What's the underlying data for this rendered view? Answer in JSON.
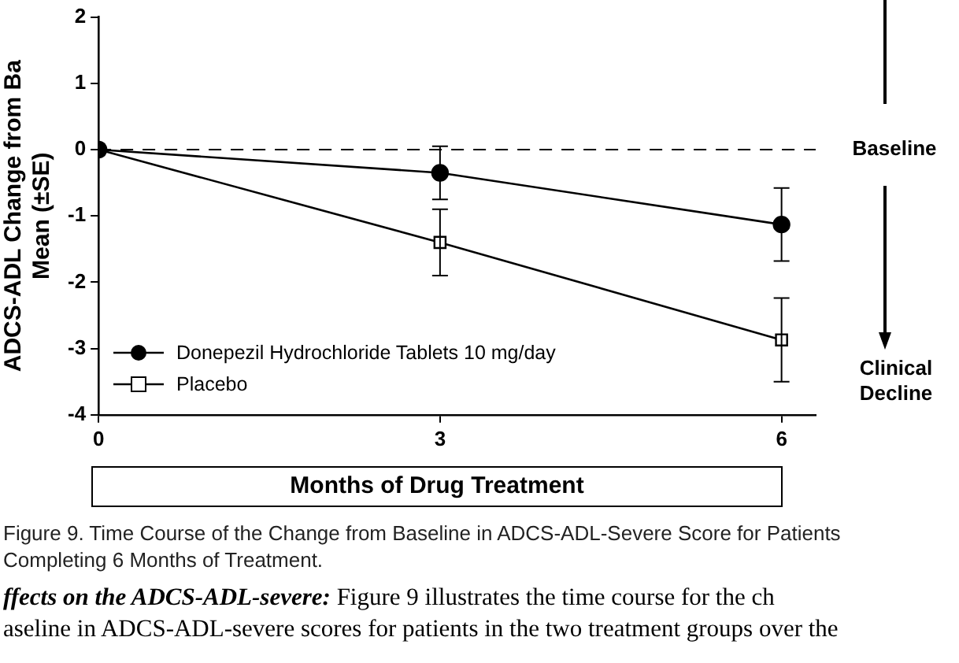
{
  "chart_data": {
    "type": "line",
    "ylabel": "ADCS-ADL Change from Ba\nMean (±SE)",
    "xlabel": "Months of Drug Treatment",
    "x": [
      0,
      3,
      6
    ],
    "xlim": [
      0,
      6.3
    ],
    "xticks": [
      0,
      3,
      6
    ],
    "ylim": [
      -4,
      2
    ],
    "yticks": [
      -4,
      -3,
      -2,
      -1,
      0,
      1,
      2
    ],
    "series": [
      {
        "name": "Donepezil Hydrochloride Tablets 10 mg/day",
        "color": "#000000",
        "marker": "circle",
        "values": [
          0,
          -0.35,
          -1.13
        ],
        "errors": [
          null,
          0.4,
          0.55
        ]
      },
      {
        "name": "Placebo",
        "color": "#000000",
        "marker": "square",
        "values": [
          0,
          -1.4,
          -2.87
        ],
        "errors": [
          null,
          0.5,
          0.63
        ]
      }
    ],
    "ref_lines": [
      {
        "axis": "y",
        "value": 0,
        "label": "Baseline",
        "line_style": "dashed",
        "color": "#000000"
      }
    ],
    "annotations": [
      "Clinical Decline",
      "Figure 9. Time Course of the Change from Baseline in ADCS-ADL-Severe Score for Patients Completing 6 Months of Treatment.",
      "ffects on the ADCS-ADL-severe:",
      "Figure 9 illustrates the time course for the ch",
      "aseline in ADCS-ADL-severe scores for patients in the two treatment groups over the"
    ],
    "grid": false,
    "legend": "bottom left"
  }
}
